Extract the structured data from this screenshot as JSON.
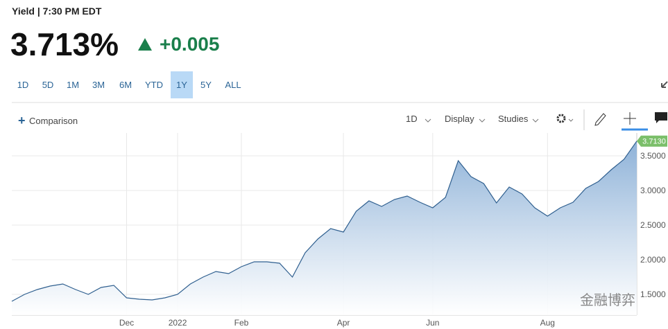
{
  "header": {
    "title": "Yield | 7:30 PM EDT",
    "price": "3.713%",
    "change": "+0.005"
  },
  "ranges": {
    "items": [
      "1D",
      "5D",
      "1M",
      "3M",
      "6M",
      "YTD",
      "1Y",
      "5Y",
      "ALL"
    ],
    "active": 6
  },
  "toolbar": {
    "comparison": "Comparison",
    "interval": "1D",
    "display": "Display",
    "studies": "Studies"
  },
  "watermark": "金融博弈",
  "chart_data": {
    "type": "line",
    "categories": [
      null,
      null,
      null,
      null,
      null,
      null,
      null,
      null,
      null,
      "Dec",
      null,
      null,
      null,
      "2022",
      null,
      null,
      null,
      null,
      "Feb",
      null,
      null,
      null,
      null,
      null,
      null,
      null,
      "Apr",
      null,
      null,
      null,
      null,
      null,
      null,
      "Jun",
      null,
      null,
      null,
      null,
      null,
      null,
      null,
      null,
      "Aug",
      null,
      null,
      null,
      null,
      null,
      null,
      null
    ],
    "series": [
      {
        "color": "#2f5f8f",
        "values": [
          1.4,
          1.5,
          1.57,
          1.62,
          1.65,
          1.57,
          1.5,
          1.6,
          1.63,
          1.45,
          1.43,
          1.42,
          1.45,
          1.5,
          1.65,
          1.75,
          1.83,
          1.8,
          1.9,
          1.97,
          1.97,
          1.95,
          1.75,
          2.1,
          2.3,
          2.45,
          2.4,
          2.7,
          2.85,
          2.77,
          2.87,
          2.92,
          2.83,
          2.75,
          2.9,
          3.43,
          3.2,
          3.1,
          2.82,
          3.05,
          2.95,
          2.75,
          2.63,
          2.75,
          2.83,
          3.03,
          3.13,
          3.3,
          3.45,
          3.713
        ],
        "value_labels": [
          null,
          null,
          null,
          null,
          null,
          null,
          null,
          null,
          null,
          null,
          null,
          null,
          null,
          null,
          null,
          null,
          null,
          null,
          null,
          null,
          null,
          null,
          null,
          null,
          null,
          null,
          null,
          null,
          null,
          null,
          null,
          null,
          null,
          null,
          null,
          null,
          null,
          null,
          null,
          null,
          null,
          null,
          null,
          null,
          null,
          null,
          null,
          null,
          null,
          "3.7130"
        ]
      }
    ],
    "ylim": [
      1.2,
      3.83
    ],
    "yticks": [
      {
        "value": 1.5,
        "label": "1.5000"
      },
      {
        "value": 2.0,
        "label": "2.0000"
      },
      {
        "value": 2.5,
        "label": "2.5000"
      },
      {
        "value": 3.0,
        "label": "3.0000"
      },
      {
        "value": 3.5,
        "label": "3.5000"
      }
    ],
    "grid": true,
    "label_color": "#7bbf6a"
  }
}
